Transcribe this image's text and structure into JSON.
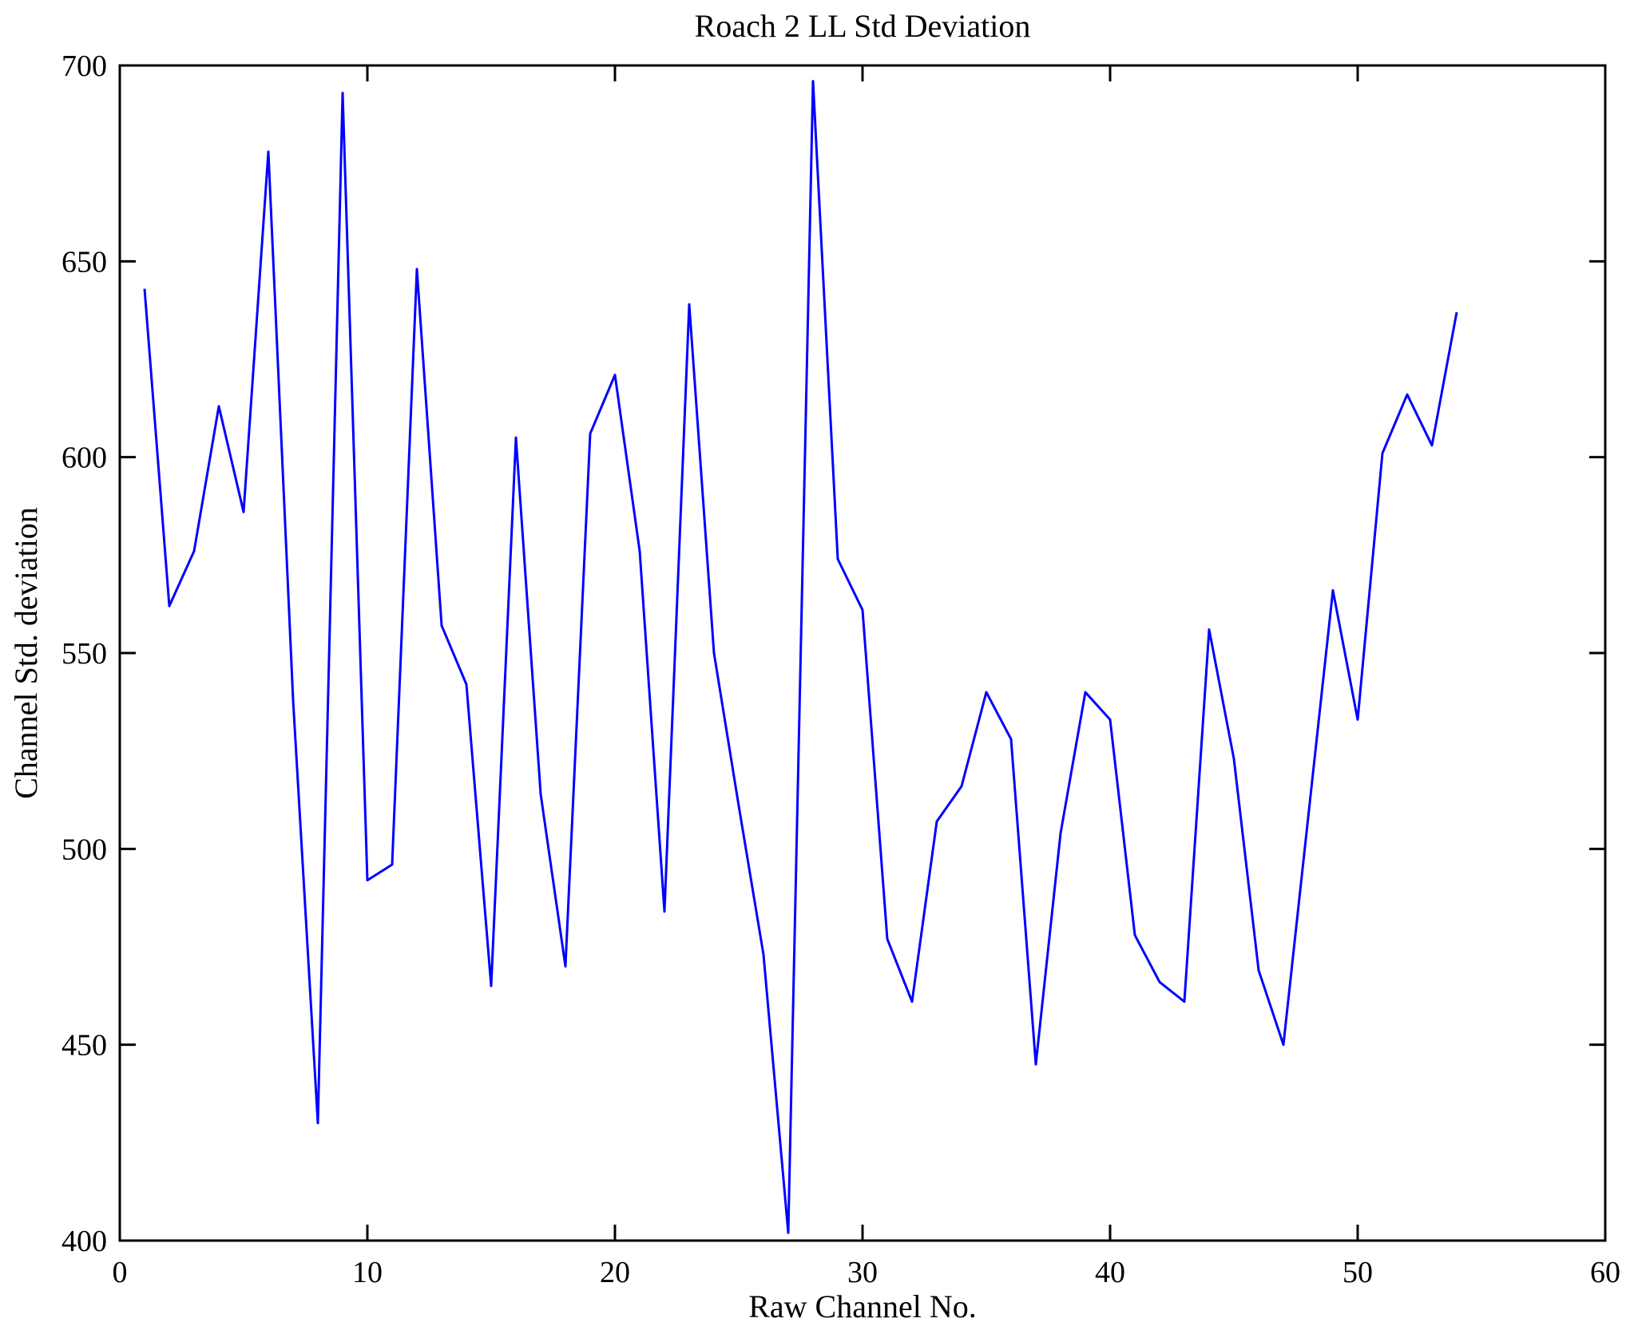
{
  "chart_data": {
    "type": "line",
    "title": "Roach 2 LL Std Deviation",
    "xlabel": "Raw Channel No.",
    "ylabel": "Channel Std. deviation",
    "xlim": [
      0,
      60
    ],
    "ylim": [
      400,
      700
    ],
    "xticks": [
      0,
      10,
      20,
      30,
      40,
      50,
      60
    ],
    "yticks": [
      400,
      450,
      500,
      550,
      600,
      650,
      700
    ],
    "grid": false,
    "legend": "none",
    "line_color": "#0000ff",
    "axis_color": "#000000",
    "series_name": "Channel Std. deviation per raw channel",
    "x": [
      1,
      2,
      3,
      4,
      5,
      6,
      7,
      8,
      9,
      10,
      11,
      12,
      13,
      14,
      15,
      16,
      17,
      18,
      19,
      20,
      21,
      22,
      23,
      24,
      25,
      26,
      27,
      28,
      29,
      30,
      31,
      32,
      33,
      34,
      35,
      36,
      37,
      38,
      39,
      40,
      41,
      42,
      43,
      44,
      45,
      46,
      47,
      48,
      49,
      50,
      51,
      52,
      53,
      54
    ],
    "y": [
      643,
      562,
      576,
      613,
      586,
      678,
      538,
      430,
      693,
      492,
      496,
      648,
      557,
      542,
      465,
      605,
      514,
      470,
      606,
      621,
      576,
      484,
      639,
      550,
      511,
      473,
      402,
      696,
      574,
      561,
      477,
      461,
      507,
      516,
      540,
      528,
      445,
      504,
      540,
      533,
      478,
      466,
      461,
      556,
      523,
      469,
      450,
      508,
      566,
      533,
      601,
      616,
      603,
      637
    ]
  }
}
